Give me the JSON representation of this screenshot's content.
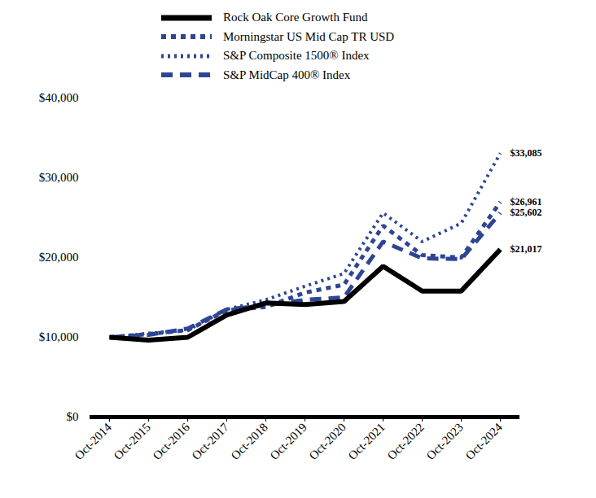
{
  "chart_data": {
    "type": "line",
    "legend": "top",
    "grid": false,
    "x": [
      "Oct-2014",
      "Oct-2015",
      "Oct-2016",
      "Oct-2017",
      "Oct-2018",
      "Oct-2019",
      "Oct-2020",
      "Oct-2021",
      "Oct-2022",
      "Oct-2023",
      "Oct-2024"
    ],
    "ylim": [
      0,
      40000
    ],
    "yticks": [
      {
        "value": 0,
        "label": "$0"
      },
      {
        "value": 10000,
        "label": "$10,000"
      },
      {
        "value": 20000,
        "label": "$20,000"
      },
      {
        "value": 30000,
        "label": "$30,000"
      },
      {
        "value": 40000,
        "label": "$40,000"
      }
    ],
    "data_labels": true,
    "series": [
      {
        "name": "Rock Oak Core Growth Fund",
        "color": "#000000",
        "line_style": "solid",
        "values": [
          10000,
          9650,
          10000,
          12800,
          14300,
          14100,
          14500,
          18900,
          15800,
          15800,
          21017
        ],
        "value_labels": [
          null,
          null,
          null,
          null,
          null,
          null,
          null,
          null,
          null,
          null,
          "$21,017"
        ]
      },
      {
        "name": "Morningstar US Mid Cap TR USD",
        "color": "#2e4593",
        "line_style": "square_dot",
        "values": [
          10000,
          10400,
          10900,
          13400,
          13800,
          15600,
          16600,
          24000,
          20300,
          20000,
          26961
        ],
        "value_labels": [
          null,
          null,
          null,
          null,
          null,
          null,
          null,
          null,
          null,
          null,
          "$26,961"
        ]
      },
      {
        "name": "S&P Composite 1500® Index",
        "color": "#2e4593",
        "line_style": "dot",
        "values": [
          10000,
          10500,
          10900,
          13500,
          14700,
          16400,
          18000,
          25600,
          22000,
          24300,
          33085
        ],
        "value_labels": [
          null,
          null,
          null,
          null,
          null,
          null,
          null,
          null,
          null,
          null,
          "$33,085"
        ]
      },
      {
        "name": "S&P MidCap 400® Index",
        "color": "#2e4593",
        "line_style": "dash",
        "values": [
          10000,
          10300,
          11100,
          13500,
          14000,
          14700,
          15000,
          22000,
          19900,
          19800,
          25602
        ],
        "value_labels": [
          null,
          null,
          null,
          null,
          null,
          null,
          null,
          null,
          null,
          null,
          "$25,602"
        ]
      }
    ]
  }
}
